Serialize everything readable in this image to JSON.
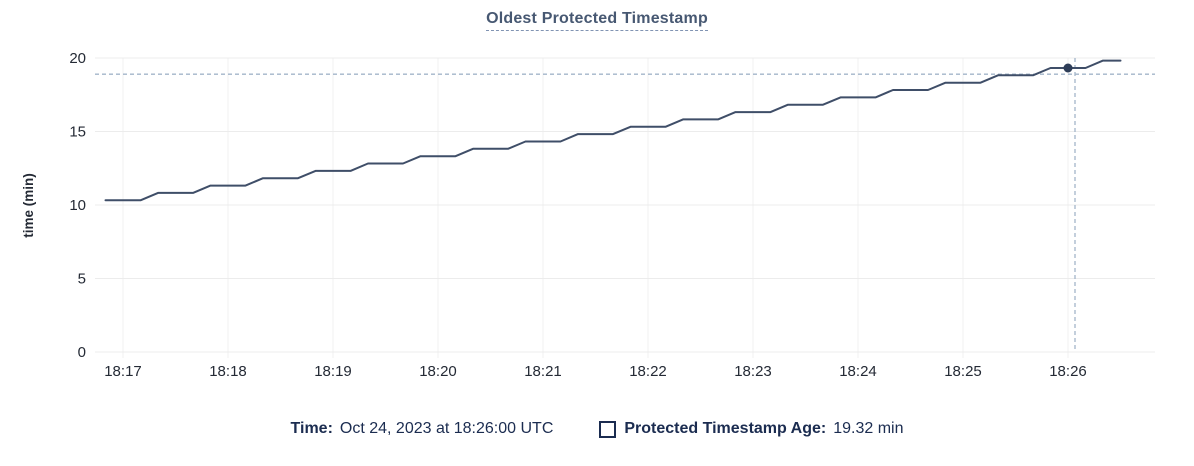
{
  "tooltip_bar": {
    "time_label": "Time:",
    "time_value": "Oct 24, 2023 at 18:26:00 UTC",
    "series_label": "Protected Timestamp Age:",
    "series_value": "19.32 min",
    "swatch_icon": "empty-square"
  },
  "chart_data": {
    "type": "line",
    "title": "Oldest Protected Timestamp",
    "xlabel": "",
    "ylabel": "time (min)",
    "ylim": [
      0,
      20
    ],
    "y_ticks": [
      0,
      5,
      10,
      15,
      20
    ],
    "x_ticks": [
      "18:17",
      "18:18",
      "18:19",
      "18:20",
      "18:21",
      "18:22",
      "18:23",
      "18:24",
      "18:25",
      "18:26"
    ],
    "grid": true,
    "legend_position": "bottom",
    "line_shape": "staircase, +0.5 min step every 30s",
    "series": [
      {
        "name": "Protected Timestamp Age",
        "points": [
          [
            "18:16:50",
            10.32
          ],
          [
            "18:17:00",
            10.32
          ],
          [
            "18:17:10",
            10.32
          ],
          [
            "18:17:20",
            10.82
          ],
          [
            "18:17:30",
            10.82
          ],
          [
            "18:17:40",
            10.82
          ],
          [
            "18:17:50",
            11.32
          ],
          [
            "18:18:00",
            11.32
          ],
          [
            "18:18:10",
            11.32
          ],
          [
            "18:18:20",
            11.82
          ],
          [
            "18:18:30",
            11.82
          ],
          [
            "18:18:40",
            11.82
          ],
          [
            "18:18:50",
            12.32
          ],
          [
            "18:19:00",
            12.32
          ],
          [
            "18:19:10",
            12.32
          ],
          [
            "18:19:20",
            12.82
          ],
          [
            "18:19:30",
            12.82
          ],
          [
            "18:19:40",
            12.82
          ],
          [
            "18:19:50",
            13.32
          ],
          [
            "18:20:00",
            13.32
          ],
          [
            "18:20:10",
            13.32
          ],
          [
            "18:20:20",
            13.82
          ],
          [
            "18:20:30",
            13.82
          ],
          [
            "18:20:40",
            13.82
          ],
          [
            "18:20:50",
            14.32
          ],
          [
            "18:21:00",
            14.32
          ],
          [
            "18:21:10",
            14.32
          ],
          [
            "18:21:20",
            14.82
          ],
          [
            "18:21:30",
            14.82
          ],
          [
            "18:21:40",
            14.82
          ],
          [
            "18:21:50",
            15.32
          ],
          [
            "18:22:00",
            15.32
          ],
          [
            "18:22:10",
            15.32
          ],
          [
            "18:22:20",
            15.82
          ],
          [
            "18:22:30",
            15.82
          ],
          [
            "18:22:40",
            15.82
          ],
          [
            "18:22:50",
            16.32
          ],
          [
            "18:23:00",
            16.32
          ],
          [
            "18:23:10",
            16.32
          ],
          [
            "18:23:20",
            16.82
          ],
          [
            "18:23:30",
            16.82
          ],
          [
            "18:23:40",
            16.82
          ],
          [
            "18:23:50",
            17.32
          ],
          [
            "18:24:00",
            17.32
          ],
          [
            "18:24:10",
            17.32
          ],
          [
            "18:24:20",
            17.82
          ],
          [
            "18:24:30",
            17.82
          ],
          [
            "18:24:40",
            17.82
          ],
          [
            "18:24:50",
            18.32
          ],
          [
            "18:25:00",
            18.32
          ],
          [
            "18:25:10",
            18.32
          ],
          [
            "18:25:20",
            18.82
          ],
          [
            "18:25:30",
            18.82
          ],
          [
            "18:25:40",
            18.82
          ],
          [
            "18:25:50",
            19.32
          ],
          [
            "18:26:00",
            19.32
          ],
          [
            "18:26:10",
            19.32
          ],
          [
            "18:26:20",
            19.82
          ],
          [
            "18:26:30",
            19.82
          ]
        ]
      }
    ],
    "crosshair": {
      "vline_time": "18:26:04",
      "hline_value": 18.9,
      "highlight_point": {
        "time": "18:26:00",
        "value": 19.32
      }
    },
    "colors": {
      "line": "#3f4e68",
      "dot": "#2e3d58",
      "crosshair": "#a3b5c9",
      "grid_horizontal": "#ececec",
      "grid_vertical": "#f2f2f2",
      "axis_tick_text": "#242a35",
      "title": "#475872",
      "title_underline": "#8194b3",
      "legend_text": "#1b2c50"
    }
  }
}
